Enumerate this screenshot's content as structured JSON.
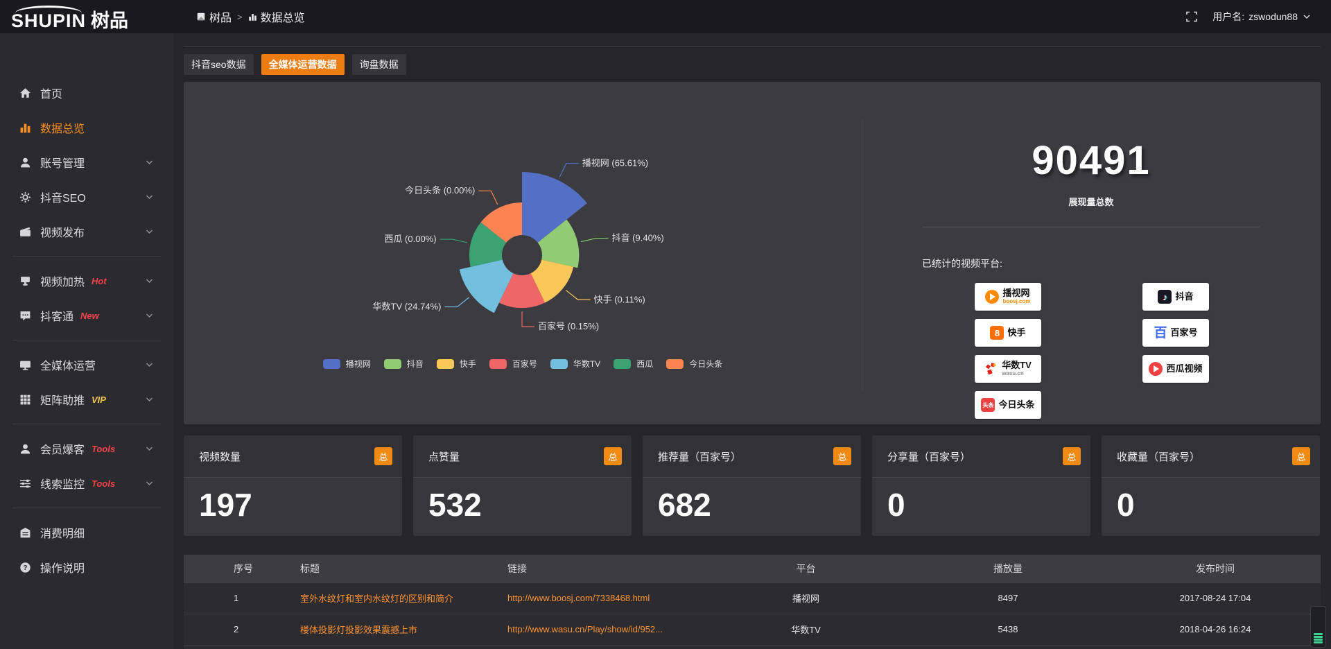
{
  "header": {
    "brand": "SHUPIN",
    "brand_cn": "树品",
    "breadcrumb": {
      "root": "树品",
      "separator": ">",
      "current": "数据总览"
    },
    "username_label": "用户名:",
    "username": "zswodun88"
  },
  "sidebar": {
    "items": [
      {
        "label": "首页",
        "icon": "home"
      },
      {
        "label": "数据总览",
        "icon": "chart",
        "active": true
      },
      {
        "label": "账号管理",
        "icon": "user",
        "chevron": true
      },
      {
        "label": "抖音SEO",
        "icon": "gear",
        "chevron": true
      },
      {
        "label": "视频发布",
        "icon": "video",
        "chevron": true
      },
      {
        "divider": true
      },
      {
        "label": "视频加热",
        "icon": "heat",
        "badge": "Hot",
        "badge_color": "red",
        "chevron": true
      },
      {
        "label": "抖客通",
        "icon": "chat",
        "badge": "New",
        "badge_color": "red",
        "chevron": true
      },
      {
        "divider": true
      },
      {
        "label": "全媒体运营",
        "icon": "monitor",
        "chevron": true
      },
      {
        "label": "矩阵助推",
        "icon": "grid",
        "badge": "VIP",
        "badge_color": "yellow",
        "chevron": true
      },
      {
        "divider": true
      },
      {
        "label": "会员爆客",
        "icon": "member",
        "badge": "Tools",
        "badge_color": "red",
        "chevron": true
      },
      {
        "label": "线索监控",
        "icon": "sliders",
        "badge": "Tools",
        "badge_color": "red",
        "chevron": true
      },
      {
        "divider": true
      },
      {
        "label": "消费明细",
        "icon": "bill"
      },
      {
        "label": "操作说明",
        "icon": "help"
      }
    ]
  },
  "tabs": [
    {
      "label": "抖音seo数据",
      "active": false
    },
    {
      "label": "全媒体运营数据",
      "active": true
    },
    {
      "label": "询盘数据",
      "active": false
    }
  ],
  "overview": {
    "total_value": "90491",
    "total_label": "展现量总数",
    "platforms_title": "已统计的视频平台:",
    "platforms": [
      {
        "name": "播视网",
        "sub": "boosj.com"
      },
      {
        "name": "抖音",
        "sub": ""
      },
      {
        "name": "快手",
        "sub": ""
      },
      {
        "name": "百家号",
        "sub": ""
      },
      {
        "name": "华数TV",
        "sub": "wasu.cn"
      },
      {
        "name": "西瓜视频",
        "sub": ""
      },
      {
        "name": "今日头条",
        "sub": ""
      }
    ]
  },
  "chart_data": {
    "type": "pie",
    "rose": true,
    "title": "",
    "categories": [
      "播视网",
      "抖音",
      "快手",
      "百家号",
      "华数TV",
      "西瓜",
      "今日头条"
    ],
    "values": [
      65.61,
      9.4,
      0.11,
      0.15,
      24.74,
      0.0,
      0.0
    ],
    "unit": "%",
    "colors": [
      "#5470c6",
      "#91cc75",
      "#fac858",
      "#ee6666",
      "#73c0de",
      "#3ba272",
      "#fc8452"
    ],
    "legend_position": "bottom",
    "label_format": "{name} ({value}%)"
  },
  "stat_cards": [
    {
      "title": "视频数量",
      "badge": "总",
      "value": "197"
    },
    {
      "title": "点赞量",
      "badge": "总",
      "value": "532"
    },
    {
      "title": "推荐量（百家号）",
      "badge": "总",
      "value": "682"
    },
    {
      "title": "分享量（百家号）",
      "badge": "总",
      "value": "0"
    },
    {
      "title": "收藏量（百家号）",
      "badge": "总",
      "value": "0"
    }
  ],
  "table": {
    "headers": [
      "序号",
      "标题",
      "链接",
      "平台",
      "播放量",
      "发布时间"
    ],
    "rows": [
      {
        "seq": "1",
        "title": "室外水纹灯和室内水纹灯的区别和简介",
        "link": "http://www.boosj.com/7338468.html",
        "platform": "播视网",
        "views": "8497",
        "time": "2017-08-24 17:04"
      },
      {
        "seq": "2",
        "title": "楼体投影灯投影效果震撼上市",
        "link": "http://www.wasu.cn/Play/show/id/952...",
        "platform": "华数TV",
        "views": "5438",
        "time": "2018-04-26 16:24"
      }
    ]
  },
  "colors": {
    "accent_orange": "#ed7c11",
    "link_orange": "#ff9335",
    "badge_red": "#f8424a",
    "badge_yellow": "#f6c64d",
    "panel_bg": "#3b3b40",
    "page_bg": "#26262a"
  }
}
